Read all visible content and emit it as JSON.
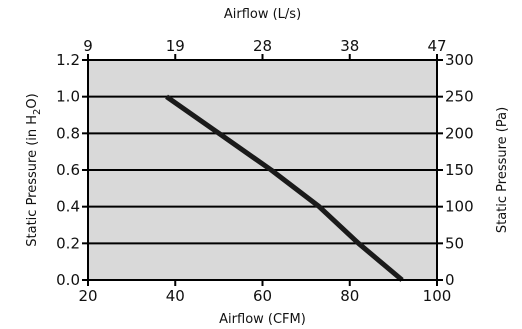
{
  "chart_data": {
    "type": "line",
    "title": "",
    "x_bottom": {
      "label": "Airflow (CFM)",
      "ticks": [
        "20",
        "40",
        "60",
        "80",
        "100"
      ],
      "lim": [
        20,
        100
      ]
    },
    "x_top": {
      "label": "Airflow (L/s)",
      "ticks": [
        "9",
        "19",
        "28",
        "38",
        "47"
      ]
    },
    "y_left": {
      "label_parts": [
        "Static Pressure (in H",
        "2",
        "O)"
      ],
      "ticks": [
        "0.0",
        "0.2",
        "0.4",
        "0.6",
        "0.8",
        "1.0",
        "1.2"
      ],
      "lim": [
        0,
        1.2
      ]
    },
    "y_right": {
      "label": "Static Pressure (Pa)",
      "ticks": [
        "0",
        "50",
        "100",
        "150",
        "200",
        "250",
        "300"
      ]
    },
    "grid": "horizontal",
    "series": [
      {
        "x": [
          38,
          50,
          62,
          73,
          82,
          92
        ],
        "y": [
          1.0,
          0.8,
          0.6,
          0.4,
          0.2,
          0.0
        ]
      }
    ],
    "colors": {
      "plot_background": "#d9d9d9",
      "line": "#1a1a1a",
      "grid": "#000000"
    }
  }
}
